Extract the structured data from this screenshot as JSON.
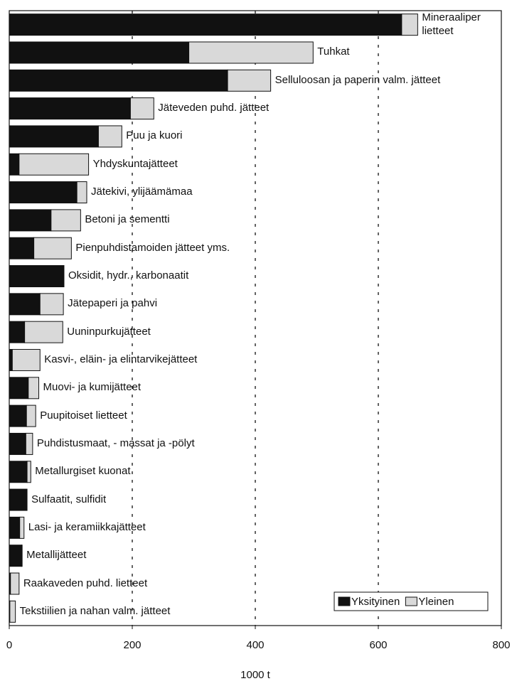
{
  "chart_data": {
    "type": "stacked_barh",
    "categories": [
      "Mineraaliper\nlietteet",
      "Tuhkat",
      "Selluloosan ja paperin valm. jätteet",
      "Jäteveden puhd. jätteet",
      "Puu ja kuori",
      "Yhdyskuntajätteet",
      "Jätekivi, ylijäämämaa",
      "Betoni ja sementti",
      "Pienpuhdistamoiden jätteet yms.",
      "Oksidit, hydr., karbonaatit",
      "Jätepaperi ja pahvi",
      "Uuninpurkujätteet",
      "Kasvi-, eläin- ja elintarvikejätteet",
      "Muovi- ja kumijätteet",
      "Puupitoiset lietteet",
      "Puhdistusmaat, - massat ja -pölyt",
      "Metallurgiset kuonat",
      "Sulfaatit, sulfidit",
      "Lasi- ja keramiikkajätteet",
      "Metallijätteet",
      "Raakaveden puhd. lietteet",
      "Tekstiilien ja nahan valm. jätteet"
    ],
    "series": [
      {
        "name": "Yksityinen",
        "color": "#111111",
        "values": [
          638,
          292,
          355,
          197,
          145,
          16,
          110,
          68,
          40,
          89,
          50,
          25,
          5,
          31,
          28,
          27,
          29,
          29,
          17,
          20,
          2,
          1
        ]
      },
      {
        "name": "Yleinen",
        "color": "#d9d9d9",
        "values": [
          26,
          202,
          70,
          38,
          38,
          113,
          16,
          48,
          61,
          0,
          38,
          62,
          45,
          17,
          15,
          11,
          6,
          0,
          7,
          1,
          14,
          9
        ]
      }
    ],
    "xlabel": "1000 t",
    "xlim": [
      0,
      800
    ],
    "xticks": [
      0,
      200,
      400,
      600,
      800
    ],
    "grid": true,
    "legend": "lower right"
  }
}
